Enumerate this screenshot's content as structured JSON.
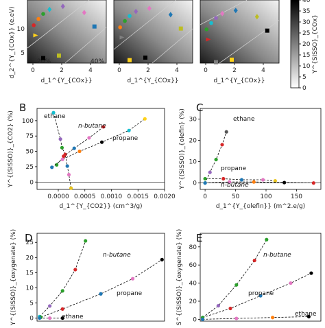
{
  "figure_size": [
    474,
    474
  ],
  "colorbar": {
    "label": "Y^{SISSO}_{COx}",
    "ticks": [
      "0",
      "5",
      "10",
      "15",
      "20",
      "25",
      "30",
      "35",
      "40"
    ],
    "range": [
      0,
      40
    ]
  },
  "top_row": {
    "ylabel": "d_2^{Y_{COx}} (e.eV)",
    "xlabel": "d_1^{Y_{COx}}",
    "yticks": [
      "5",
      "10"
    ],
    "xticks": [
      "0",
      "2",
      "4"
    ],
    "panels": [
      {
        "contour_labels": [
          "20%",
          "40%"
        ]
      },
      {
        "contour_labels": []
      },
      {
        "contour_labels": []
      }
    ]
  },
  "chart_data": [
    {
      "panel": "B",
      "type": "scatter",
      "xlabel": "d_1^{Y_{CO2}} (cm^3/g)",
      "ylabel": "Y^{(SISSO)}_{CO2} (%)",
      "xlim": [
        -0.0004,
        0.002
      ],
      "ylim": [
        -12,
        120
      ],
      "xticks": [
        "0.0000",
        "0.0005",
        "0.0010",
        "0.0015",
        "0.0020"
      ],
      "yticks": [
        "0",
        "25",
        "50",
        "75",
        "100"
      ],
      "series": [
        {
          "name": "ethane",
          "color": "#e8c31a",
          "x": [
            -9e-05,
            4e-05,
            7e-05,
            0.00013,
            0.00017,
            0.0002,
            0.00024
          ],
          "y": [
            113,
            70,
            56,
            45,
            26,
            12,
            -10
          ]
        },
        {
          "name": "n-butane",
          "color": "#d62728",
          "x": [
            -3e-05,
            0.0001,
            0.0003,
            0.00058,
            0.00085
          ],
          "y": [
            28,
            42,
            55,
            72,
            90
          ]
        },
        {
          "name": "propane",
          "color": "#ffd21a",
          "x": [
            -0.00012,
            8e-05,
            0.0004,
            0.00082,
            0.00133,
            0.00163
          ],
          "y": [
            24,
            37,
            50,
            65,
            84,
            103
          ]
        }
      ],
      "annotations": [
        "ethane",
        "n-butane",
        "propane"
      ]
    },
    {
      "panel": "C",
      "type": "scatter",
      "xlabel": "d_1^{Y_{olefin}} (m^2.e/g)",
      "ylabel": "Y^{(SISSO)}_{olefin} (%)",
      "xlim": [
        -8,
        190
      ],
      "ylim": [
        -3,
        35
      ],
      "xticks": [
        "0",
        "50",
        "100",
        "150"
      ],
      "yticks": [
        "0",
        "10",
        "20",
        "30"
      ],
      "series": [
        {
          "name": "ethane",
          "color": "#555555",
          "x": [
            0,
            8,
            18,
            28,
            35
          ],
          "y": [
            0,
            5,
            11,
            18,
            24
          ]
        },
        {
          "name": "propane",
          "color": "#e8c31a",
          "x": [
            0,
            30,
            60,
            95,
            115
          ],
          "y": [
            2,
            2,
            1.5,
            1.5,
            1
          ]
        },
        {
          "name": "n-butane",
          "color": "#d62728",
          "x": [
            0,
            40,
            80,
            130,
            178
          ],
          "y": [
            0,
            0.5,
            0.5,
            0.2,
            0
          ]
        }
      ],
      "annotations": [
        "ethane",
        "propane",
        "n-butane"
      ]
    },
    {
      "panel": "D",
      "type": "scatter",
      "ylabel": "Y^{(SISSO)}_{oxygenate} (%)",
      "xlim": [
        0,
        1
      ],
      "ylim": [
        -1,
        28
      ],
      "yticks": [
        "0",
        "5",
        "10",
        "15",
        "20",
        "25"
      ],
      "series": [
        {
          "name": "n-butane",
          "color": "#2ca02c",
          "x": [
            0.02,
            0.1,
            0.2,
            0.3,
            0.38
          ],
          "y": [
            0.5,
            4,
            9,
            16,
            25.5
          ]
        },
        {
          "name": "propane",
          "color": "#000000",
          "x": [
            0.03,
            0.2,
            0.5,
            0.75,
            0.98
          ],
          "y": [
            0.3,
            3,
            8,
            13,
            19.3
          ]
        },
        {
          "name": "ethane",
          "color": "#000000",
          "x": [
            0.02,
            0.1,
            0.2
          ],
          "y": [
            0,
            0,
            0
          ]
        }
      ],
      "annotations": [
        "n-butane",
        "propane",
        "ethane"
      ]
    },
    {
      "panel": "E",
      "type": "scatter",
      "ylabel": "S^{(SISSO)}_{oxygenate} (%)",
      "xlim": [
        0,
        1
      ],
      "ylim": [
        -2,
        95
      ],
      "yticks": [
        "0",
        "20",
        "40",
        "60",
        "80"
      ],
      "series": [
        {
          "name": "n-butane",
          "color": "#2ca02c",
          "x": [
            0.02,
            0.15,
            0.3,
            0.45,
            0.55
          ],
          "y": [
            2,
            15,
            38,
            65,
            88
          ]
        },
        {
          "name": "propane",
          "color": "#000000",
          "x": [
            0.02,
            0.25,
            0.5,
            0.75,
            0.92
          ],
          "y": [
            2,
            12,
            26,
            40,
            51
          ]
        },
        {
          "name": "ethane",
          "color": "#000000",
          "x": [
            0.02,
            0.3,
            0.6,
            0.9
          ],
          "y": [
            0,
            1,
            2,
            3
          ]
        }
      ],
      "annotations": [
        "n-butane",
        "propane",
        "ethane"
      ]
    }
  ]
}
